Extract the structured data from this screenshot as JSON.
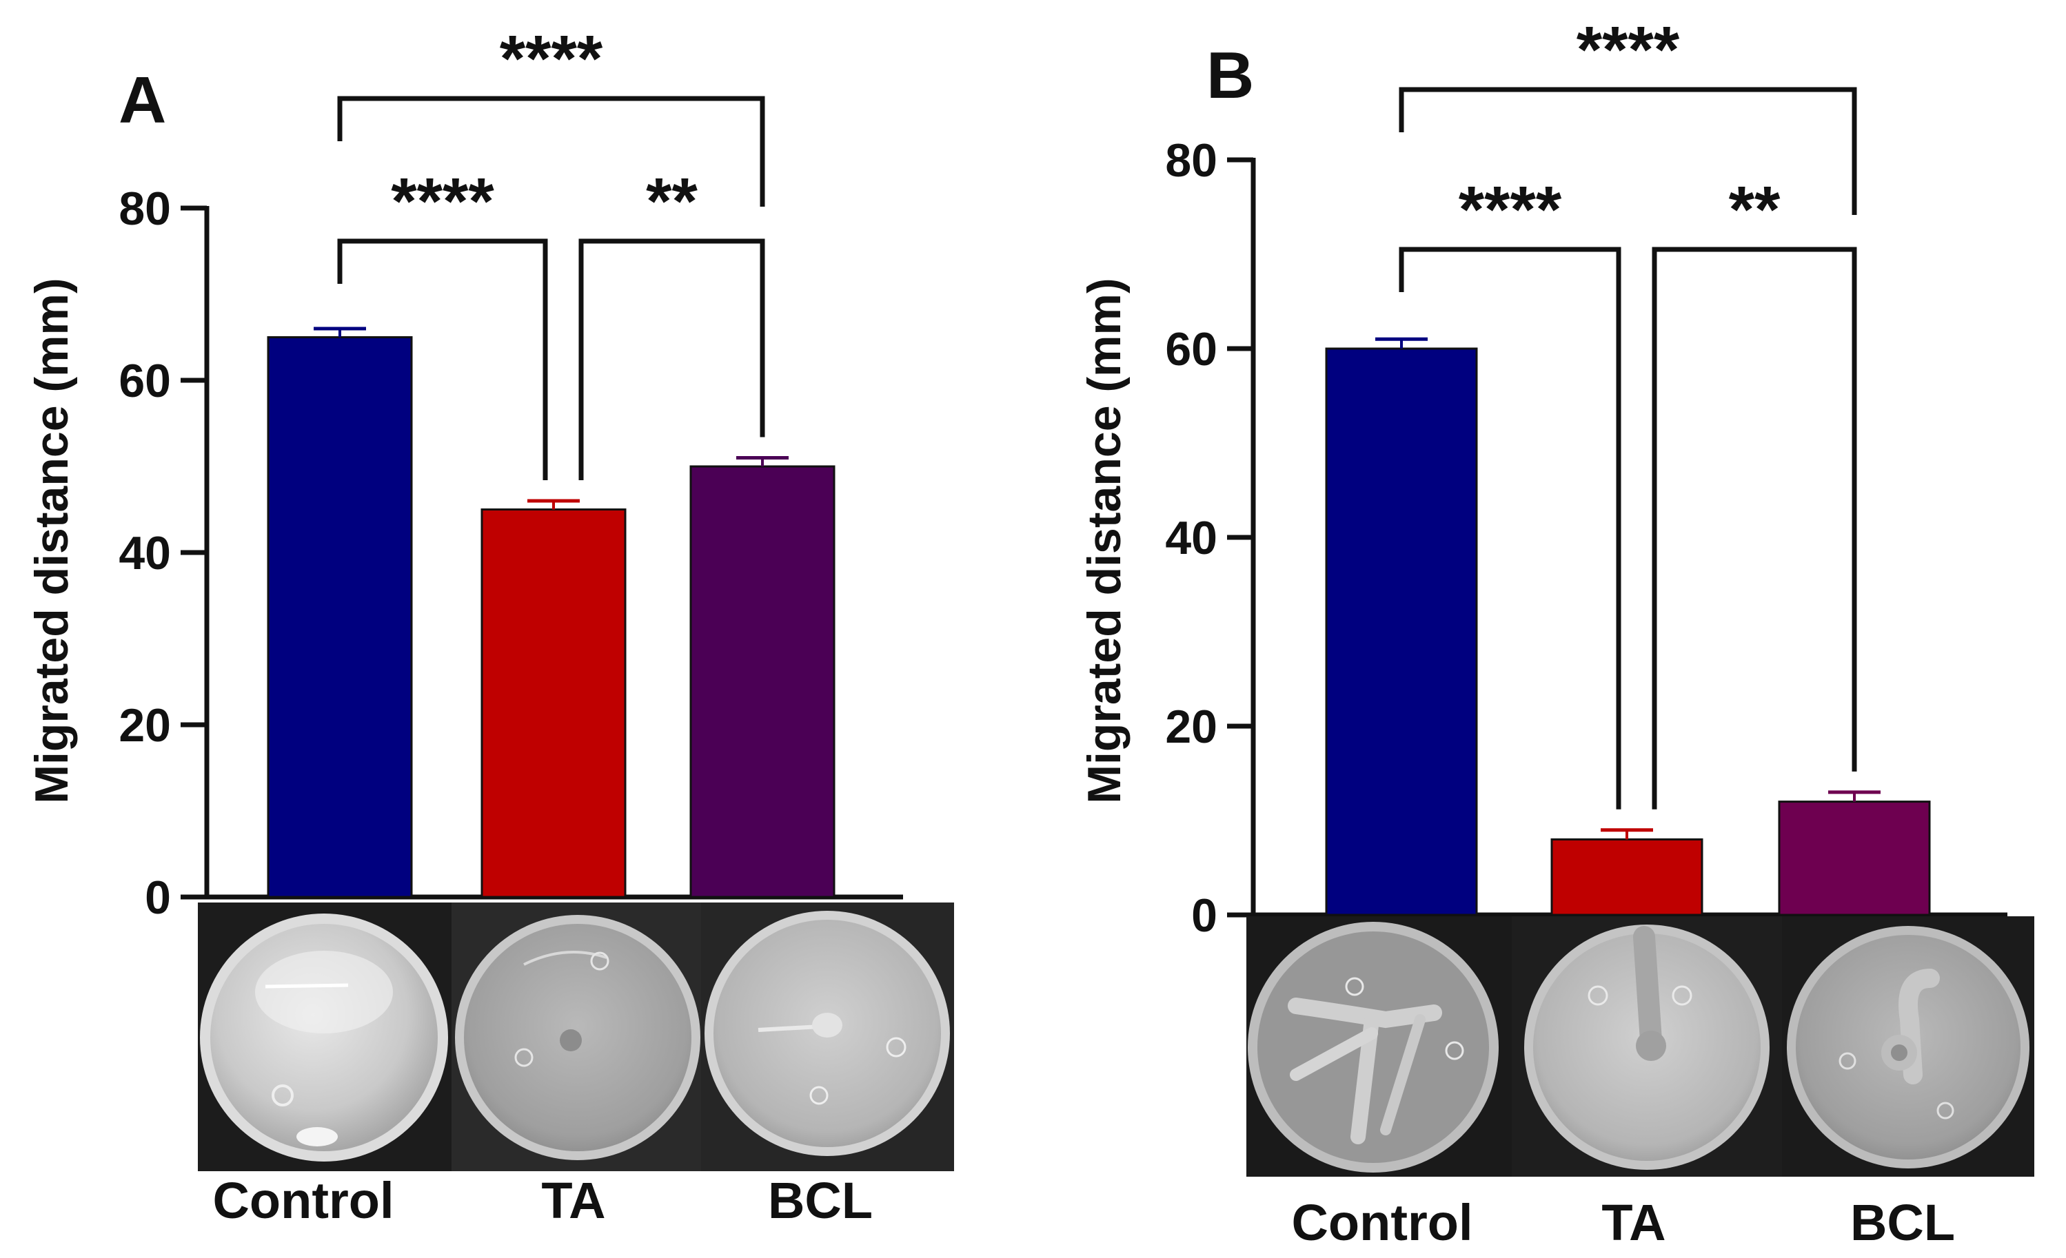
{
  "chart_data": [
    {
      "type": "bar",
      "panel_label": "A",
      "ylabel": "Migrated distance (mm)",
      "ylim": [
        0,
        80
      ],
      "yticks": [
        "0",
        "20",
        "40",
        "60",
        "80"
      ],
      "categories": [
        "Control",
        "TA",
        "BCL"
      ],
      "values": [
        65,
        45,
        50
      ],
      "errors": [
        1,
        1,
        1
      ],
      "colors": [
        "#00007f",
        "#bf0000",
        "#4b0055"
      ],
      "significance": [
        {
          "from": 0,
          "to": 2,
          "label": "****"
        },
        {
          "from": 0,
          "to": 1,
          "label": "****"
        },
        {
          "from": 1,
          "to": 2,
          "label": "**"
        }
      ]
    },
    {
      "type": "bar",
      "panel_label": "B",
      "ylabel": "Migrated distance (mm)",
      "ylim": [
        0,
        80
      ],
      "yticks": [
        "0",
        "20",
        "40",
        "60",
        "80"
      ],
      "categories": [
        "Control",
        "TA",
        "BCL"
      ],
      "values": [
        60,
        8,
        12
      ],
      "errors": [
        1,
        1,
        1
      ],
      "colors": [
        "#00007f",
        "#bf0000",
        "#6e0050"
      ],
      "significance": [
        {
          "from": 0,
          "to": 2,
          "label": "****"
        },
        {
          "from": 0,
          "to": 1,
          "label": "****"
        },
        {
          "from": 1,
          "to": 2,
          "label": "**"
        }
      ]
    }
  ]
}
